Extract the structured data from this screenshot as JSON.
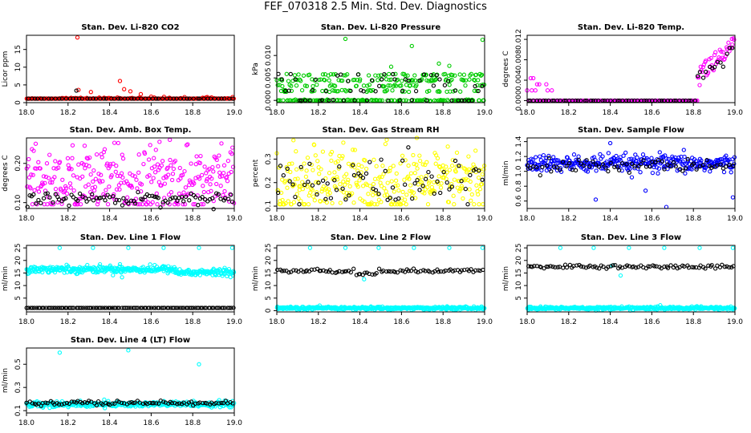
{
  "page": {
    "title": "FEF_070318  2.5 Min. Std. Dev. Diagnostics"
  },
  "colors": {
    "red": "#ff0000",
    "green": "#00cc00",
    "magenta": "#ff00ff",
    "yellow": "#ffff00",
    "blue": "#0000ff",
    "cyan": "#00ffff",
    "black": "#000000"
  },
  "chart_data": [
    {
      "type": "scatter",
      "title": "Stan. Dev. Li-820 CO2",
      "xlabel": "",
      "ylabel": "Licor ppm",
      "xlim": [
        18.0,
        19.0
      ],
      "ylim": [
        0,
        19
      ],
      "xticks": [
        "18.0",
        "18.2",
        "18.4",
        "18.6",
        "18.8",
        "19.0"
      ],
      "yticks": [
        {
          "v": 0,
          "label": "0"
        },
        {
          "v": 5,
          "label": "5"
        },
        {
          "v": 10,
          "label": "10"
        },
        {
          "v": 15,
          "label": "15"
        }
      ],
      "series": [
        {
          "color": "red",
          "count": 300,
          "base": 0.9,
          "spread": 0.25,
          "outliers": [
            [
              18.245,
              18.4
            ],
            [
              18.25,
              3.6
            ],
            [
              18.31,
              3.0
            ],
            [
              18.45,
              6.1
            ],
            [
              18.47,
              3.8
            ],
            [
              18.5,
              3.2
            ],
            [
              18.55,
              2.4
            ],
            [
              18.6,
              1.7
            ]
          ]
        },
        {
          "color": "black",
          "count": 60,
          "base": 0.55,
          "spread": 0.05,
          "outliers": [
            [
              18.24,
              3.4
            ]
          ]
        }
      ]
    },
    {
      "type": "scatter",
      "title": "Stan. Dev. Li-820 Pressure",
      "xlabel": "",
      "ylabel": "kPa",
      "xlim": [
        18.0,
        19.0
      ],
      "ylim": [
        -0.0005,
        0.0145
      ],
      "xticks": [
        "18.0",
        "18.2",
        "18.4",
        "18.6",
        "18.8",
        "19.0"
      ],
      "yticks": [
        {
          "v": 0.0,
          "label": "0.000"
        },
        {
          "v": 0.005,
          "label": "0.005"
        },
        {
          "v": 0.01,
          "label": "0.010"
        }
      ],
      "series": [
        {
          "color": "green",
          "count": 340,
          "levels": [
            0.0,
            0.0021,
            0.0033,
            0.0045,
            0.0057
          ],
          "outliers": [
            [
              18.33,
              0.0137
            ],
            [
              18.65,
              0.0121
            ],
            [
              18.99,
              0.0135
            ],
            [
              18.78,
              0.0082
            ],
            [
              18.83,
              0.0077
            ],
            [
              18.55,
              0.0075
            ]
          ]
        },
        {
          "color": "black",
          "count": 60,
          "levels": [
            0.0,
            0.0021,
            0.0033,
            0.0045,
            0.0057
          ],
          "outliers": []
        }
      ]
    },
    {
      "type": "scatter",
      "title": "Stan. Dev. Li-820 Temp.",
      "xlabel": "",
      "ylabel": "degrees C",
      "xlim": [
        18.0,
        19.0
      ],
      "ylim": [
        -0.0004,
        0.0128
      ],
      "xticks": [
        "18.0",
        "18.2",
        "18.4",
        "18.6",
        "18.8",
        "19.0"
      ],
      "yticks": [
        {
          "v": 0.0,
          "label": "0.000"
        },
        {
          "v": 0.004,
          "label": "0.004"
        },
        {
          "v": 0.008,
          "label": "0.008"
        },
        {
          "v": 0.012,
          "label": "0.012"
        }
      ],
      "series": [
        {
          "color": "magenta",
          "count": 240,
          "profile": "temp",
          "outliers": []
        },
        {
          "color": "black",
          "count": 70,
          "profile": "temp-black",
          "outliers": []
        }
      ]
    },
    {
      "type": "scatter",
      "title": "Stan. Dev. Amb. Box Temp.",
      "xlabel": "",
      "ylabel": "degrees C",
      "xlim": [
        18.0,
        19.0
      ],
      "ylim": [
        0.085,
        0.265
      ],
      "xticks": [
        "18.0",
        "18.2",
        "18.4",
        "18.6",
        "18.8",
        "19.0"
      ],
      "yticks": [
        {
          "v": 0.1,
          "label": "0.10"
        },
        {
          "v": 0.2,
          "label": "0.20"
        }
      ],
      "series": [
        {
          "color": "magenta",
          "count": 320,
          "base": 0.15,
          "spread": 0.045,
          "outliers": [
            [
              18.69,
              0.26
            ],
            [
              18.64,
              0.255
            ],
            [
              18.28,
              0.245
            ]
          ]
        },
        {
          "color": "black",
          "count": 90,
          "base": 0.11,
          "spread": 0.008,
          "outliers": []
        }
      ]
    },
    {
      "type": "scatter",
      "title": "Stan. Dev. Gas Stream RH",
      "xlabel": "",
      "ylabel": "percent",
      "xlim": [
        18.0,
        19.0
      ],
      "ylim": [
        0.09,
        0.39
      ],
      "xticks": [
        "18.0",
        "18.2",
        "18.4",
        "18.6",
        "18.8",
        "19.0"
      ],
      "yticks": [
        {
          "v": 0.1,
          "label": "0.1"
        },
        {
          "v": 0.2,
          "label": "0.2"
        },
        {
          "v": 0.3,
          "label": "0.3"
        }
      ],
      "series": [
        {
          "color": "yellow",
          "count": 330,
          "base": 0.2,
          "spread": 0.07,
          "outliers": [
            [
              18.08,
              0.38
            ],
            [
              18.18,
              0.36
            ],
            [
              18.32,
              0.37
            ]
          ]
        },
        {
          "color": "black",
          "count": 70,
          "base": 0.2,
          "spread": 0.06,
          "outliers": []
        }
      ]
    },
    {
      "type": "scatter",
      "title": "Stan. Dev. Sample Flow",
      "xlabel": "",
      "ylabel": "ml/min",
      "xlim": [
        18.0,
        19.0
      ],
      "ylim": [
        0.5,
        1.45
      ],
      "xticks": [
        "18.0",
        "18.2",
        "18.4",
        "18.6",
        "18.8",
        "19.0"
      ],
      "yticks": [
        {
          "v": 0.6,
          "label": "0.6"
        },
        {
          "v": 0.8,
          "label": "0.8"
        },
        {
          "v": 1.0,
          "label": "1.0"
        },
        {
          "v": 1.2,
          "label": "1.2"
        },
        {
          "v": 1.4,
          "label": "1.4"
        }
      ],
      "series": [
        {
          "color": "blue",
          "count": 320,
          "base": 1.1,
          "spread": 0.06,
          "outliers": [
            [
              18.4,
              1.38
            ],
            [
              18.33,
              0.62
            ],
            [
              18.67,
              0.52
            ],
            [
              18.99,
              0.65
            ],
            [
              18.57,
              0.74
            ]
          ]
        },
        {
          "color": "black",
          "count": 70,
          "base": 1.08,
          "spread": 0.04,
          "outliers": []
        }
      ]
    },
    {
      "type": "scatter",
      "title": "Stan. Dev. Line 1 Flow",
      "xlabel": "",
      "ylabel": "ml/min",
      "xlim": [
        18.0,
        19.0
      ],
      "ylim": [
        -0.5,
        26
      ],
      "xticks": [
        "18.0",
        "18.2",
        "18.4",
        "18.6",
        "18.8",
        "19.0"
      ],
      "yticks": [
        {
          "v": 5,
          "label": "5"
        },
        {
          "v": 10,
          "label": "10"
        },
        {
          "v": 15,
          "label": "15"
        },
        {
          "v": 20,
          "label": "20"
        },
        {
          "v": 25,
          "label": "25"
        }
      ],
      "series": [
        {
          "color": "cyan",
          "count": 380,
          "profile": "band",
          "base": 16.5,
          "spread": 0.7,
          "drop": [
            0.72,
            15.2
          ],
          "outliers": [
            [
              18.16,
              25.0
            ],
            [
              18.32,
              25.0
            ],
            [
              18.49,
              25.0
            ],
            [
              18.66,
              25.0
            ],
            [
              18.83,
              25.0
            ],
            [
              18.99,
              25.0
            ],
            [
              18.45,
              18.5
            ],
            [
              18.46,
              13.3
            ]
          ]
        },
        {
          "color": "black",
          "count": 110,
          "base": 1.0,
          "spread": 0.05,
          "outliers": []
        }
      ]
    },
    {
      "type": "scatter",
      "title": "Stan. Dev. Line 2 Flow",
      "xlabel": "",
      "ylabel": "ml/min",
      "xlim": [
        18.0,
        19.0
      ],
      "ylim": [
        -0.5,
        26
      ],
      "xticks": [
        "18.0",
        "18.2",
        "18.4",
        "18.6",
        "18.8",
        "19.0"
      ],
      "yticks": [
        {
          "v": 0,
          "label": "0"
        },
        {
          "v": 5,
          "label": "5"
        },
        {
          "v": 10,
          "label": "10"
        },
        {
          "v": 15,
          "label": "15"
        },
        {
          "v": 20,
          "label": "20"
        },
        {
          "v": 25,
          "label": "25"
        }
      ],
      "series": [
        {
          "color": "cyan",
          "count": 380,
          "profile": "band",
          "base": 1.0,
          "spread": 0.3,
          "outliers": [
            [
              18.16,
              25.0
            ],
            [
              18.33,
              25.0
            ],
            [
              18.49,
              25.0
            ],
            [
              18.66,
              25.0
            ],
            [
              18.83,
              25.0
            ],
            [
              18.99,
              25.0
            ],
            [
              18.42,
              12.5
            ]
          ]
        },
        {
          "color": "black",
          "count": 90,
          "profile": "line2",
          "base": 15.8,
          "spread": 0.4,
          "outliers": []
        }
      ]
    },
    {
      "type": "scatter",
      "title": "Stan. Dev. Line 3 Flow",
      "xlabel": "",
      "ylabel": "ml/min",
      "xlim": [
        18.0,
        19.0
      ],
      "ylim": [
        -0.5,
        26
      ],
      "xticks": [
        "18.0",
        "18.2",
        "18.4",
        "18.6",
        "18.8",
        "19.0"
      ],
      "yticks": [
        {
          "v": 5,
          "label": "5"
        },
        {
          "v": 10,
          "label": "10"
        },
        {
          "v": 15,
          "label": "15"
        },
        {
          "v": 20,
          "label": "20"
        },
        {
          "v": 25,
          "label": "25"
        }
      ],
      "series": [
        {
          "color": "cyan",
          "count": 380,
          "profile": "band",
          "base": 1.0,
          "spread": 0.3,
          "outliers": [
            [
              18.16,
              25.0
            ],
            [
              18.32,
              25.0
            ],
            [
              18.49,
              25.0
            ],
            [
              18.66,
              25.0
            ],
            [
              18.83,
              25.0
            ],
            [
              18.99,
              25.0
            ],
            [
              18.41,
              18.0
            ],
            [
              18.45,
              14.0
            ]
          ]
        },
        {
          "color": "black",
          "count": 90,
          "profile": "line3",
          "base": 17.5,
          "spread": 0.4,
          "outliers": []
        }
      ]
    },
    {
      "type": "scatter",
      "title": "Stan. Dev. Line 4 (LT) Flow",
      "xlabel": "",
      "ylabel": "ml/min",
      "xlim": [
        18.0,
        19.0
      ],
      "ylim": [
        0.08,
        0.64
      ],
      "xticks": [
        "18.0",
        "18.2",
        "18.4",
        "18.6",
        "18.8",
        "19.0"
      ],
      "yticks": [
        {
          "v": 0.1,
          "label": "0.1"
        },
        {
          "v": 0.3,
          "label": "0.3"
        },
        {
          "v": 0.5,
          "label": "0.5"
        }
      ],
      "series": [
        {
          "color": "cyan",
          "count": 380,
          "profile": "band",
          "base": 0.155,
          "spread": 0.012,
          "outliers": [
            [
              18.16,
              0.6
            ],
            [
              18.49,
              0.62
            ],
            [
              18.83,
              0.5
            ]
          ]
        },
        {
          "color": "black",
          "count": 90,
          "base": 0.165,
          "spread": 0.01,
          "outliers": []
        }
      ]
    }
  ]
}
